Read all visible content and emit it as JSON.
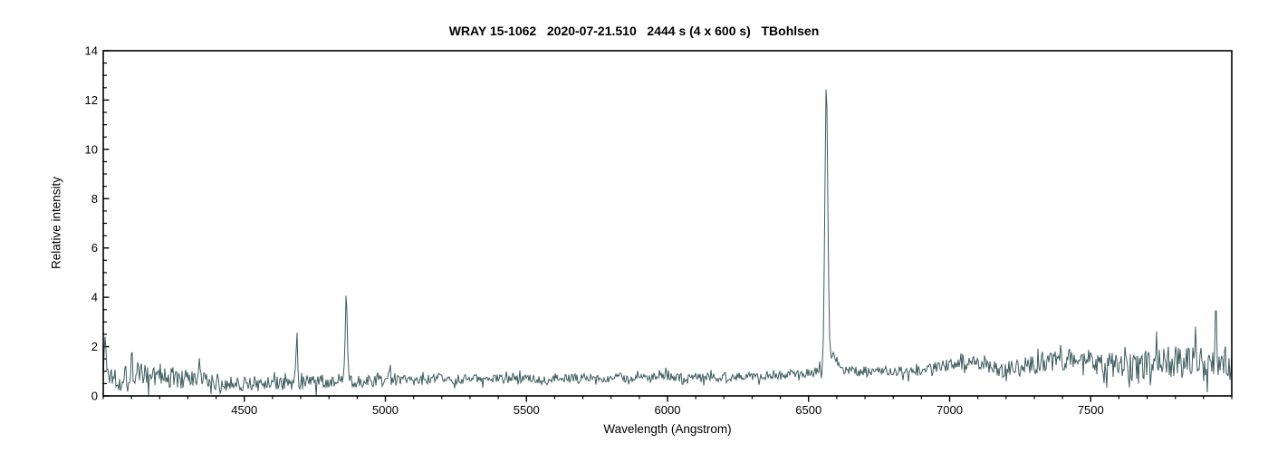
{
  "chart_data": {
    "type": "line",
    "title": "WRAY 15-1062   2020-07-21.510   2444 s (4 x 600 s)   TBohlsen",
    "xlabel": "Wavelength (Angstrom)",
    "ylabel": "Relative intensity",
    "xlim": [
      4000,
      8000
    ],
    "ylim": [
      0,
      14
    ],
    "x_major_ticks": [
      4500,
      5000,
      5500,
      6000,
      6500,
      7000,
      7500
    ],
    "x_minor_tick_step": 100,
    "y_major_ticks": [
      0,
      2,
      4,
      6,
      8,
      10,
      12,
      14
    ],
    "y_minor_tick_step": 0.5,
    "grid": "off",
    "legend": "none",
    "background_color": "#ffffff",
    "axis_color": "#000000",
    "line_color": "#3e5c5e",
    "spectrum": {
      "continuum_points": [
        [
          4000,
          0.95
        ],
        [
          4060,
          0.75
        ],
        [
          4150,
          0.85
        ],
        [
          4250,
          0.7
        ],
        [
          4400,
          0.55
        ],
        [
          4550,
          0.5
        ],
        [
          4750,
          0.55
        ],
        [
          5000,
          0.62
        ],
        [
          5250,
          0.68
        ],
        [
          5500,
          0.7
        ],
        [
          5750,
          0.73
        ],
        [
          6000,
          0.75
        ],
        [
          6250,
          0.8
        ],
        [
          6450,
          0.9
        ],
        [
          6620,
          1.0
        ],
        [
          6800,
          1.0
        ],
        [
          6950,
          1.15
        ],
        [
          7080,
          1.35
        ],
        [
          7200,
          1.05
        ],
        [
          7320,
          1.35
        ],
        [
          7450,
          1.5
        ],
        [
          7560,
          1.25
        ],
        [
          7650,
          1.15
        ],
        [
          7750,
          1.35
        ],
        [
          7870,
          1.4
        ],
        [
          8000,
          1.55
        ]
      ],
      "noise_amplitude_points": [
        [
          4000,
          0.6
        ],
        [
          4150,
          0.5
        ],
        [
          4350,
          0.38
        ],
        [
          4600,
          0.3
        ],
        [
          4900,
          0.25
        ],
        [
          5200,
          0.2
        ],
        [
          5600,
          0.18
        ],
        [
          6000,
          0.2
        ],
        [
          6400,
          0.18
        ],
        [
          6700,
          0.2
        ],
        [
          6950,
          0.25
        ],
        [
          7150,
          0.3
        ],
        [
          7300,
          0.45
        ],
        [
          7500,
          0.5
        ],
        [
          7700,
          0.6
        ],
        [
          8000,
          0.8
        ]
      ],
      "emission_features": [
        {
          "wavelength": 4007,
          "amplitude": 1.6,
          "sigma": 2.5
        },
        {
          "wavelength": 4101,
          "amplitude": 1.0,
          "sigma": 3.0
        },
        {
          "wavelength": 4340,
          "amplitude": 0.7,
          "sigma": 3.0
        },
        {
          "wavelength": 4686,
          "amplitude": 2.0,
          "sigma": 3.0
        },
        {
          "wavelength": 4861,
          "amplitude": 3.5,
          "sigma": 3.5
        },
        {
          "wavelength": 5016,
          "amplitude": 0.85,
          "sigma": 3.0
        },
        {
          "wavelength": 6545,
          "amplitude": -0.7,
          "sigma": 3.0
        },
        {
          "wavelength": 6563,
          "amplitude": 10.9,
          "sigma": 5.0
        },
        {
          "wavelength": 6563,
          "amplitude": 0.8,
          "sigma": 16.0
        },
        {
          "wavelength": 6595,
          "amplitude": 0.5,
          "sigma": 9.0
        },
        {
          "wavelength": 7945,
          "amplitude": 1.8,
          "sigma": 2.5
        }
      ],
      "peak_values": {
        "peak_4686": 2.55,
        "peak_4861": 4.1,
        "peak_6563": 12.65
      }
    }
  }
}
